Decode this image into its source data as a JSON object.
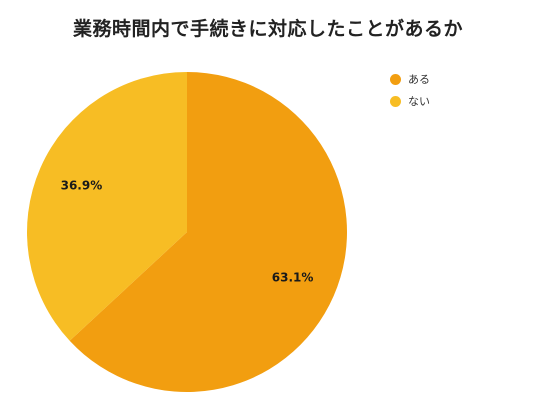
{
  "chart_data": {
    "type": "pie",
    "title": "業務時間内で手続きに対応したことがあるか",
    "slices": [
      {
        "label": "ある",
        "value": 63.1,
        "value_label": "63.1%",
        "color": "#F29E10"
      },
      {
        "label": "ない",
        "value": 36.9,
        "value_label": "36.9%",
        "color": "#F7BD24"
      }
    ],
    "legend_position": "top-right"
  }
}
